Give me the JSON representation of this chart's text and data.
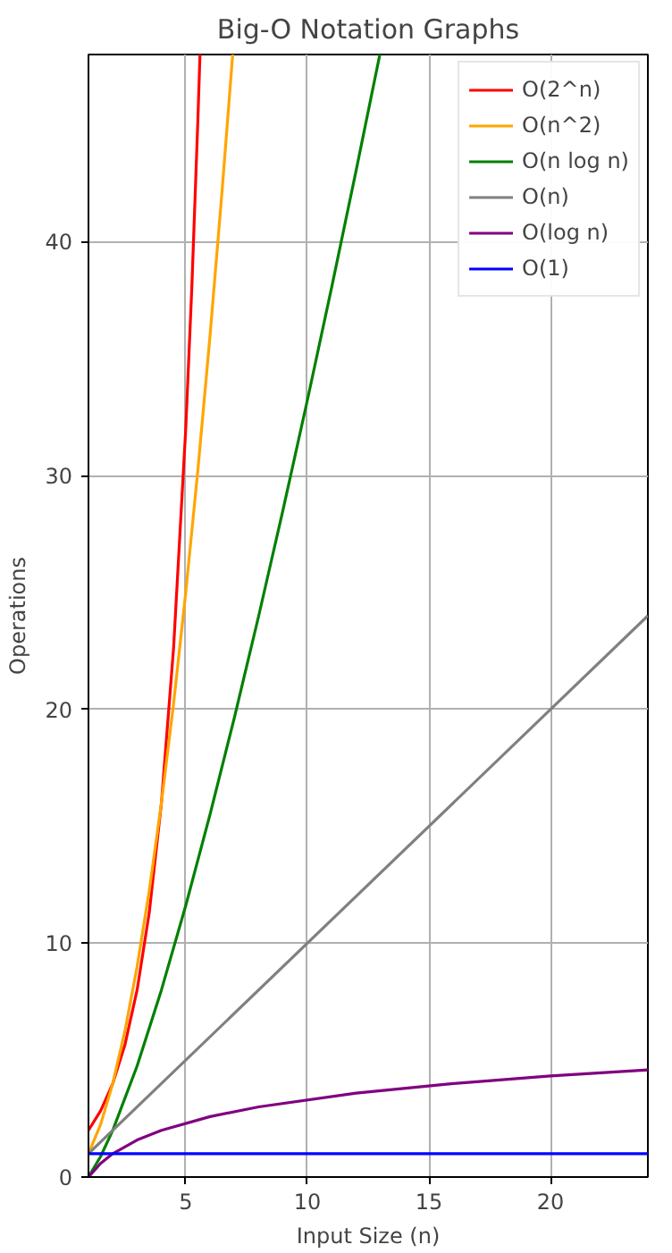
{
  "chart_data": {
    "type": "line",
    "title": "Big-O Notation Graphs",
    "xlabel": "Input Size (n)",
    "ylabel": "Operations",
    "xlim": [
      1,
      24
    ],
    "ylim": [
      0,
      48
    ],
    "xticks": [
      5,
      10,
      15,
      20
    ],
    "yticks": [
      0,
      10,
      20,
      30,
      40
    ],
    "grid": true,
    "legend": "top right",
    "marker": "none",
    "line_style": "solid",
    "series": [
      {
        "name": "O(2^n)",
        "color": "#ff0000",
        "x": [
          1,
          1.5,
          2,
          2.5,
          3,
          3.5,
          4,
          4.5,
          5,
          5.25,
          5.5,
          5.585
        ],
        "values": [
          2,
          2.83,
          4,
          5.66,
          8,
          11.31,
          16,
          22.63,
          32,
          38.05,
          45.25,
          48
        ]
      },
      {
        "name": "O(n^2)",
        "color": "#ffa500",
        "x": [
          1,
          1.5,
          2,
          2.5,
          3,
          3.5,
          4,
          4.5,
          5,
          5.5,
          6,
          6.5,
          6.93
        ],
        "values": [
          1,
          2.25,
          4,
          6.25,
          9,
          12.25,
          16,
          20.25,
          25,
          30.25,
          36,
          42.25,
          48
        ]
      },
      {
        "name": "O(n log n)",
        "color": "#008000",
        "x": [
          1,
          1.5,
          2,
          3,
          4,
          5,
          6,
          7,
          8,
          9,
          10,
          11,
          12,
          12.98
        ],
        "values": [
          0,
          0.88,
          2,
          4.75,
          8,
          11.61,
          15.51,
          19.65,
          24,
          28.53,
          33.22,
          38.05,
          43.02,
          48
        ]
      },
      {
        "name": "O(n)",
        "color": "#808080",
        "x": [
          1,
          24
        ],
        "values": [
          1,
          24
        ]
      },
      {
        "name": "O(log n)",
        "color": "#800080",
        "x": [
          1,
          1.5,
          2,
          3,
          4,
          6,
          8,
          12,
          16,
          20,
          24
        ],
        "values": [
          0,
          0.585,
          1,
          1.585,
          2,
          2.585,
          3,
          3.585,
          4,
          4.32,
          4.585
        ]
      },
      {
        "name": "O(1)",
        "color": "#0000ff",
        "x": [
          1,
          24
        ],
        "values": [
          1,
          1
        ]
      }
    ]
  }
}
